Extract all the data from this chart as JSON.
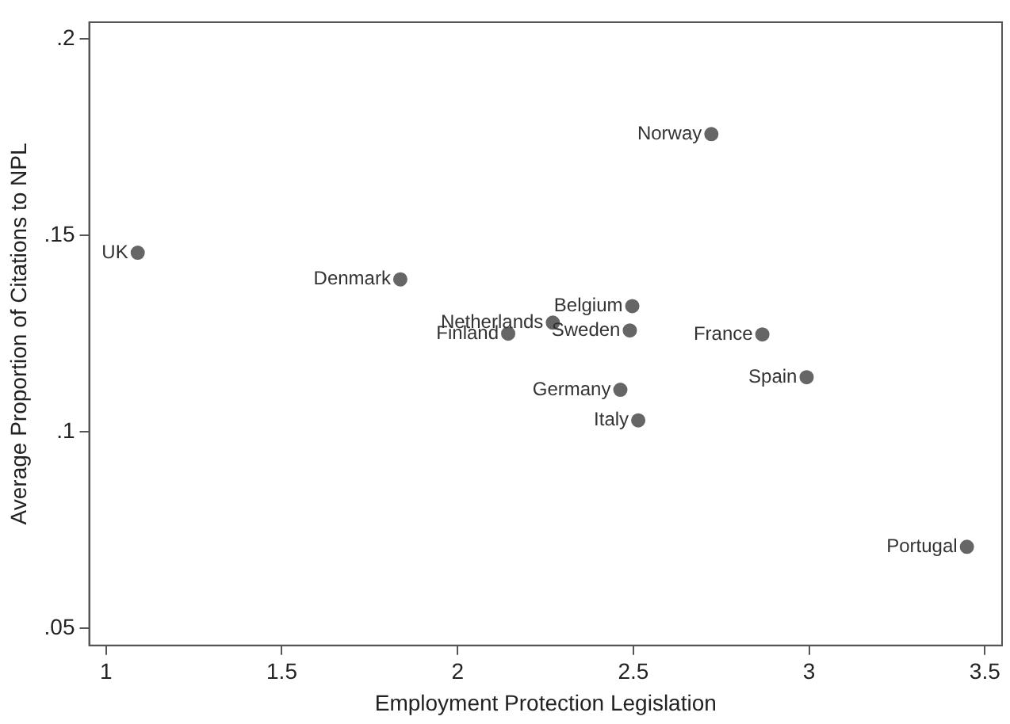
{
  "chart_data": {
    "type": "scatter",
    "xlabel": "Employment Protection Legislation",
    "ylabel": "Average Proportion of Citations to NPL",
    "x": [
      1.09,
      1.837,
      2.271,
      2.144,
      2.497,
      2.49,
      2.867,
      2.722,
      2.993,
      2.463,
      2.514,
      3.449
    ],
    "values": [
      0.1456,
      0.1388,
      0.1278,
      0.125,
      0.132,
      0.1258,
      0.1248,
      0.1758,
      0.1139,
      0.1107,
      0.1029,
      0.0707
    ],
    "color": "#666666",
    "marker": "circle",
    "grid": false,
    "legend": false,
    "xlim": [
      0.952,
      3.549
    ],
    "xticks": [
      1,
      1.5,
      2,
      2.5,
      3,
      3.5
    ],
    "ylim": [
      0.0456,
      0.2043
    ],
    "yticks": [
      {
        "value": 0.05,
        "label": ".05"
      },
      {
        "value": 0.1,
        "label": ".1"
      },
      {
        "value": 0.15,
        "label": ".15"
      },
      {
        "value": 0.2,
        "label": ".2"
      }
    ],
    "annotations": [
      {
        "text": "UK",
        "x": 1.09,
        "y": 0.1456
      },
      {
        "text": "Denmark",
        "x": 1.837,
        "y": 0.1388
      },
      {
        "text": "Netherlands",
        "x": 2.271,
        "y": 0.1278
      },
      {
        "text": "Finland",
        "x": 2.144,
        "y": 0.125
      },
      {
        "text": "Belgium",
        "x": 2.497,
        "y": 0.132
      },
      {
        "text": "Sweden",
        "x": 2.49,
        "y": 0.1258
      },
      {
        "text": "France",
        "x": 2.867,
        "y": 0.1248
      },
      {
        "text": "Norway",
        "x": 2.722,
        "y": 0.1758
      },
      {
        "text": "Spain",
        "x": 2.993,
        "y": 0.1139
      },
      {
        "text": "Germany",
        "x": 2.463,
        "y": 0.1107
      },
      {
        "text": "Italy",
        "x": 2.514,
        "y": 0.1029
      },
      {
        "text": "Portugal",
        "x": 3.449,
        "y": 0.0707
      }
    ]
  }
}
